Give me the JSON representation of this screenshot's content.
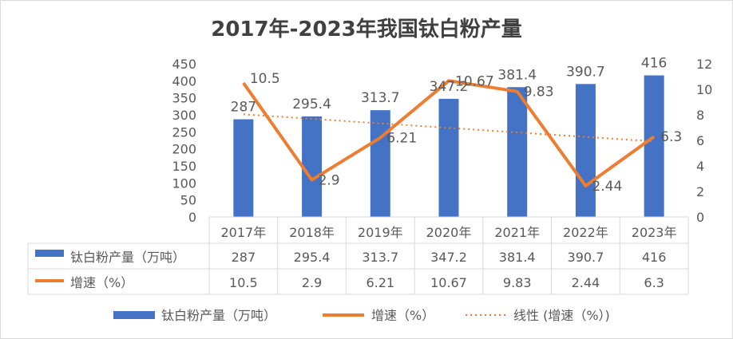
{
  "chart_data": {
    "type": "bar+line",
    "title": "2017年-2023年我国钛白粉产量",
    "categories": [
      "2017年",
      "2018年",
      "2019年",
      "2020年",
      "2021年",
      "2022年",
      "2023年"
    ],
    "series": [
      {
        "name": "钛白粉产量（万吨）",
        "type": "bar",
        "axis": "left",
        "color": "#4472c4",
        "values": [
          287,
          295.4,
          313.7,
          347.2,
          381.4,
          390.7,
          416
        ],
        "labels": [
          "287",
          "295.4",
          "313.7",
          "347.2",
          "381.4",
          "390.7",
          "416"
        ]
      },
      {
        "name": "增速（%）",
        "type": "line",
        "axis": "right",
        "color": "#ed7d31",
        "values": [
          10.5,
          2.9,
          6.21,
          10.67,
          9.83,
          2.44,
          6.3
        ],
        "labels": [
          "10.5",
          "2.9",
          "6.21",
          "10.67",
          "9.83",
          "2.44",
          "6.3"
        ]
      },
      {
        "name": "线性 (增速（%）)",
        "type": "trendline-linear",
        "of": "增速（%）",
        "color": "#ed7d31",
        "style": "dotted"
      }
    ],
    "y_left": {
      "range": [
        0,
        450
      ],
      "ticks": [
        "0",
        "50",
        "100",
        "150",
        "200",
        "250",
        "300",
        "350",
        "400",
        "450"
      ]
    },
    "y_right": {
      "range": [
        0,
        12
      ],
      "ticks": [
        "0",
        "2",
        "4",
        "6",
        "8",
        "10",
        "12"
      ]
    },
    "data_table": true,
    "legend": "bottom",
    "grid": false
  }
}
